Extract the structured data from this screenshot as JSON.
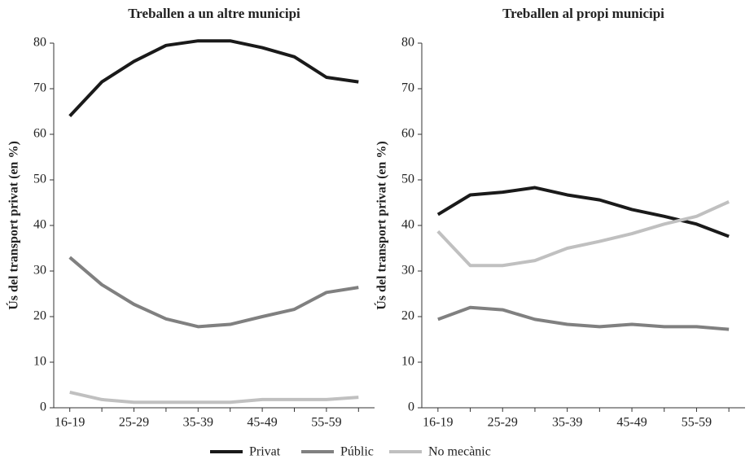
{
  "chart_data": [
    {
      "type": "line",
      "title": "Treballen a un altre municipi",
      "ylabel": "Ús del transport privat (en %)",
      "categories": [
        "16-19",
        null,
        "25-29",
        null,
        "35-39",
        null,
        "45-49",
        null,
        "55-59",
        null
      ],
      "series": [
        {
          "name": "Privat",
          "color": "#1a1a1a",
          "values": [
            64,
            71.5,
            76,
            79.5,
            80.5,
            80.5,
            79,
            77,
            72.5,
            71.5
          ]
        },
        {
          "name": "Públic",
          "color": "#808080",
          "values": [
            33,
            27,
            22.7,
            19.5,
            17.8,
            18.3,
            20,
            21.6,
            25.3,
            26.4
          ]
        },
        {
          "name": "No mecànic",
          "color": "#c0c0c0",
          "values": [
            3.4,
            1.8,
            1.2,
            1.2,
            1.2,
            1.2,
            1.8,
            1.8,
            1.8,
            2.3
          ]
        }
      ],
      "ylim": [
        0,
        80
      ],
      "yticks": [
        0,
        10,
        20,
        30,
        40,
        50,
        60,
        70,
        80
      ]
    },
    {
      "type": "line",
      "title": "Treballen al propi municipi",
      "ylabel": "Ús del transport privat (en %)",
      "categories": [
        "16-19",
        null,
        "25-29",
        null,
        "35-39",
        null,
        "45-49",
        null,
        "55-59",
        null
      ],
      "series": [
        {
          "name": "Privat",
          "color": "#1a1a1a",
          "values": [
            42.4,
            46.7,
            47.3,
            48.3,
            46.7,
            45.6,
            43.5,
            42,
            40.3,
            37.6
          ]
        },
        {
          "name": "Públic",
          "color": "#808080",
          "values": [
            19.4,
            22,
            21.5,
            19.4,
            18.3,
            17.8,
            18.3,
            17.8,
            17.8,
            17.2
          ]
        },
        {
          "name": "No mecànic",
          "color": "#c0c0c0",
          "values": [
            38.7,
            31.2,
            31.2,
            32.3,
            35,
            36.5,
            38.2,
            40.3,
            42,
            45.2
          ]
        }
      ],
      "ylim": [
        0,
        80
      ],
      "yticks": [
        0,
        10,
        20,
        30,
        40,
        50,
        60,
        70,
        80
      ]
    }
  ]
}
